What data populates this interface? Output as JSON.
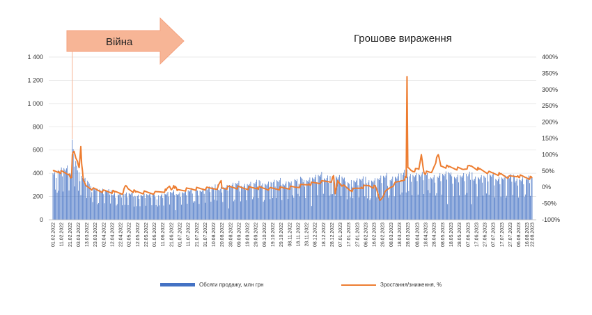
{
  "chart_data": {
    "type": "bar+line",
    "title": "Грошове вираження",
    "annotation": {
      "label": "Війна",
      "color": "#f7b596"
    },
    "y_left": {
      "ticks": [
        "0",
        "200",
        "400",
        "600",
        "800",
        "1 000",
        "1 200",
        "1 400"
      ],
      "range": [
        0,
        1400
      ]
    },
    "y_right": {
      "ticks": [
        "-100%",
        "-50%",
        "0%",
        "50%",
        "100%",
        "150%",
        "200%",
        "250%",
        "300%",
        "350%",
        "400%"
      ],
      "range": [
        -100,
        400
      ]
    },
    "x_ticks": [
      "01.02.2022",
      "11.02.2022",
      "21.02.2022",
      "03.03.2022",
      "13.03.2022",
      "23.03.2022",
      "02.04.2022",
      "12.04.2022",
      "22.04.2022",
      "02.05.2022",
      "12.05.2022",
      "22.05.2022",
      "01.06.2022",
      "11.06.2022",
      "21.06.2022",
      "01.07.2022",
      "11.07.2022",
      "21.07.2022",
      "31.07.2022",
      "10.08.2022",
      "20.08.2022",
      "30.08.2022",
      "09.09.2022",
      "19.09.2022",
      "29.09.2022",
      "09.10.2022",
      "19.10.2022",
      "29.10.2022",
      "08.11.2022",
      "18.11.2022",
      "28.11.2022",
      "08.12.2022",
      "18.12.2022",
      "28.12.2022",
      "07.01.2023",
      "17.01.2023",
      "27.01.2023",
      "06.02.2023",
      "16.02.2023",
      "26.02.2023",
      "08.03.2023",
      "18.03.2023",
      "28.03.2023",
      "08.04.2023",
      "18.04.2023",
      "28.04.2023",
      "08.05.2023",
      "18.05.2023",
      "28.05.2023",
      "07.06.2023",
      "17.06.2023",
      "27.06.2023",
      "07.07.2023",
      "17.07.2023",
      "27.07.2023",
      "06.08.2023",
      "16.08.2023",
      "22.08.2023"
    ],
    "war_start_date": "24.02.2022",
    "series": [
      {
        "name": "Обсяги продажу, млн грн",
        "kind": "bar",
        "axis": "left",
        "color": "#4472c4",
        "weekly_pattern": [
          1.0,
          0.97,
          0.94,
          0.98,
          1.03,
          0.85,
          0.55
        ],
        "dip_days_start": [
          10,
          15,
          22,
          24
        ],
        "dip_days_end": [
          17,
          20,
          28,
          30
        ],
        "dip_factor": 0.6,
        "level_points": [
          {
            "x": "01.02.2022",
            "y": 430
          },
          {
            "x": "23.02.2022",
            "y": 430
          },
          {
            "x": "24.02.2022",
            "y": 680
          },
          {
            "x": "26.02.2022",
            "y": 560
          },
          {
            "x": "28.02.2022",
            "y": 520
          },
          {
            "x": "04.03.2022",
            "y": 400
          },
          {
            "x": "12.03.2022",
            "y": 330
          },
          {
            "x": "25.03.2022",
            "y": 270
          },
          {
            "x": "10.04.2022",
            "y": 240
          },
          {
            "x": "01.05.2022",
            "y": 220
          },
          {
            "x": "01.06.2022",
            "y": 215
          },
          {
            "x": "01.07.2022",
            "y": 240
          },
          {
            "x": "01.08.2022",
            "y": 270
          },
          {
            "x": "01.09.2022",
            "y": 300
          },
          {
            "x": "01.10.2022",
            "y": 320
          },
          {
            "x": "01.11.2022",
            "y": 330
          },
          {
            "x": "01.12.2022",
            "y": 360
          },
          {
            "x": "25.12.2022",
            "y": 390
          },
          {
            "x": "15.01.2023",
            "y": 340
          },
          {
            "x": "15.02.2023",
            "y": 350
          },
          {
            "x": "15.03.2023",
            "y": 380
          },
          {
            "x": "28.03.2023",
            "y": 410
          },
          {
            "x": "15.04.2023",
            "y": 390
          },
          {
            "x": "15.05.2023",
            "y": 390
          },
          {
            "x": "15.06.2023",
            "y": 380
          },
          {
            "x": "15.07.2023",
            "y": 370
          },
          {
            "x": "22.08.2023",
            "y": 360
          }
        ],
        "spikes": [
          {
            "x": "24.02.2022",
            "y": 690
          },
          {
            "x": "28.03.2023",
            "y": 370
          }
        ]
      },
      {
        "name": "Зростання/зниження, %",
        "kind": "line",
        "axis": "right",
        "color": "#ed7d31",
        "points": [
          {
            "x": "01.02.2022",
            "y": 50
          },
          {
            "x": "08.02.2022",
            "y": 48
          },
          {
            "x": "14.02.2022",
            "y": 45
          },
          {
            "x": "20.02.2022",
            "y": 40
          },
          {
            "x": "23.02.2022",
            "y": 30
          },
          {
            "x": "24.02.2022",
            "y": 100
          },
          {
            "x": "26.02.2022",
            "y": 110
          },
          {
            "x": "28.02.2022",
            "y": 90
          },
          {
            "x": "02.03.2022",
            "y": 80
          },
          {
            "x": "04.03.2022",
            "y": 60
          },
          {
            "x": "06.03.2022",
            "y": 125
          },
          {
            "x": "07.03.2022",
            "y": 70
          },
          {
            "x": "09.03.2022",
            "y": 20
          },
          {
            "x": "12.03.2022",
            "y": 5
          },
          {
            "x": "20.03.2022",
            "y": -5
          },
          {
            "x": "01.04.2022",
            "y": -12
          },
          {
            "x": "15.04.2022",
            "y": -15
          },
          {
            "x": "25.04.2022",
            "y": -18
          },
          {
            "x": "28.04.2022",
            "y": 5
          },
          {
            "x": "01.05.2022",
            "y": -5
          },
          {
            "x": "10.05.2022",
            "y": -15
          },
          {
            "x": "01.06.2022",
            "y": -18
          },
          {
            "x": "15.06.2022",
            "y": -10
          },
          {
            "x": "19.06.2022",
            "y": 3
          },
          {
            "x": "21.06.2022",
            "y": -8
          },
          {
            "x": "24.06.2022",
            "y": 5
          },
          {
            "x": "28.06.2022",
            "y": -10
          },
          {
            "x": "15.07.2022",
            "y": -5
          },
          {
            "x": "01.08.2022",
            "y": -5
          },
          {
            "x": "15.08.2022",
            "y": -2
          },
          {
            "x": "19.08.2022",
            "y": 20
          },
          {
            "x": "20.08.2022",
            "y": -3
          },
          {
            "x": "01.09.2022",
            "y": 0
          },
          {
            "x": "15.09.2022",
            "y": -3
          },
          {
            "x": "01.10.2022",
            "y": -2
          },
          {
            "x": "15.10.2022",
            "y": -5
          },
          {
            "x": "01.11.2022",
            "y": -3
          },
          {
            "x": "15.11.2022",
            "y": 0
          },
          {
            "x": "01.12.2022",
            "y": 10
          },
          {
            "x": "15.12.2022",
            "y": 15
          },
          {
            "x": "28.12.2022",
            "y": 20
          },
          {
            "x": "30.12.2022",
            "y": 35
          },
          {
            "x": "01.01.2023",
            "y": -20
          },
          {
            "x": "04.01.2023",
            "y": 20
          },
          {
            "x": "10.01.2023",
            "y": 5
          },
          {
            "x": "20.01.2023",
            "y": -10
          },
          {
            "x": "01.02.2023",
            "y": 0
          },
          {
            "x": "10.02.2023",
            "y": 5
          },
          {
            "x": "18.02.2023",
            "y": 0
          },
          {
            "x": "23.02.2023",
            "y": -40
          },
          {
            "x": "28.02.2023",
            "y": -20
          },
          {
            "x": "05.03.2023",
            "y": -5
          },
          {
            "x": "12.03.2023",
            "y": 10
          },
          {
            "x": "20.03.2023",
            "y": 20
          },
          {
            "x": "26.03.2023",
            "y": 30
          },
          {
            "x": "27.03.2023",
            "y": 340
          },
          {
            "x": "28.03.2023",
            "y": 60
          },
          {
            "x": "02.04.2023",
            "y": 50
          },
          {
            "x": "10.04.2023",
            "y": 55
          },
          {
            "x": "13.04.2023",
            "y": 100
          },
          {
            "x": "16.04.2023",
            "y": 45
          },
          {
            "x": "25.04.2023",
            "y": 45
          },
          {
            "x": "03.05.2023",
            "y": 100
          },
          {
            "x": "06.05.2023",
            "y": 65
          },
          {
            "x": "15.05.2023",
            "y": 62
          },
          {
            "x": "01.06.2023",
            "y": 55
          },
          {
            "x": "10.06.2023",
            "y": 65
          },
          {
            "x": "20.06.2023",
            "y": 55
          },
          {
            "x": "01.07.2023",
            "y": 45
          },
          {
            "x": "15.07.2023",
            "y": 40
          },
          {
            "x": "25.07.2023",
            "y": 30
          },
          {
            "x": "05.08.2023",
            "y": 35
          },
          {
            "x": "15.08.2023",
            "y": 30
          },
          {
            "x": "22.08.2023",
            "y": 28
          }
        ]
      }
    ],
    "grid": "horizontal",
    "legend_position": "bottom"
  }
}
